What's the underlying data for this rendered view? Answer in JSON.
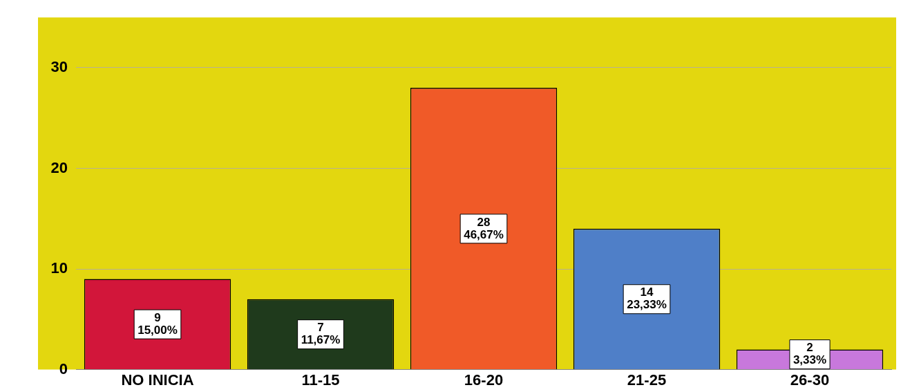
{
  "chart_data": {
    "type": "bar",
    "categories": [
      "NO INICIA",
      "11-15",
      "16-20",
      "21-25",
      "26-30"
    ],
    "values": [
      9,
      7,
      28,
      14,
      2
    ],
    "colors": [
      "#d2163a",
      "#1f3a1c",
      "#f05a28",
      "#4f7fc8",
      "#c878dc"
    ],
    "value_labels": [
      "9\n15,00%",
      "7\n11,67%",
      "28\n46,67%",
      "14\n23,33%",
      "2\n3,33%"
    ],
    "ylim": [
      0,
      35
    ],
    "yticks": [
      0,
      10,
      20,
      30
    ],
    "grid": "y",
    "legend": false
  }
}
